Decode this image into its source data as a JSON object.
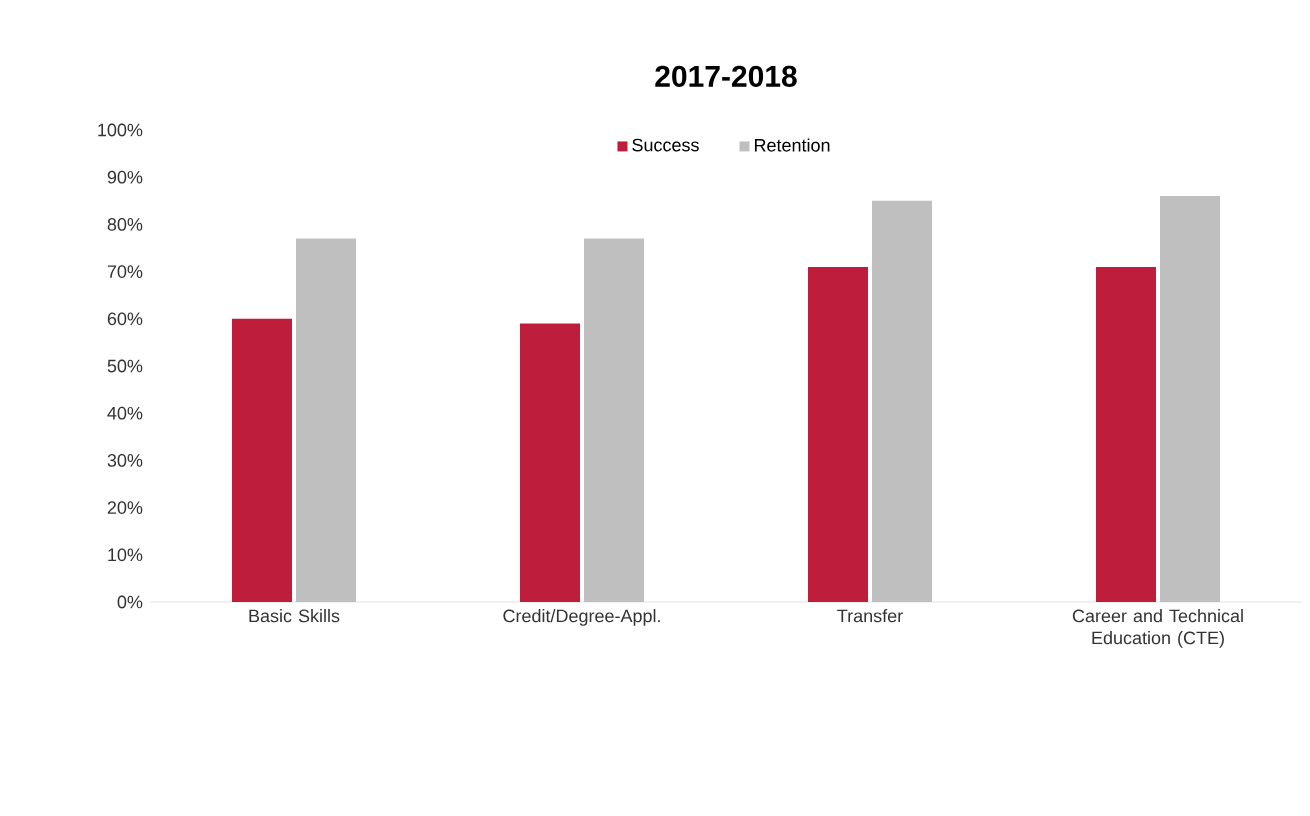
{
  "chart_data": {
    "type": "bar",
    "title": "2017-2018",
    "categories": [
      "Basic Skills",
      "Credit/Degree-Appl.",
      "Transfer",
      "Career and Technical Education (CTE)"
    ],
    "series": [
      {
        "name": "Success",
        "color": "#be1e3c",
        "values": [
          60,
          59,
          71,
          71
        ]
      },
      {
        "name": "Retention",
        "color": "#bfbfbf",
        "values": [
          77,
          77,
          85,
          86
        ]
      }
    ],
    "ylim": [
      0,
      100
    ],
    "yticks": [
      {
        "value": 0,
        "label": "0%"
      },
      {
        "value": 10,
        "label": "10%"
      },
      {
        "value": 20,
        "label": "20%"
      },
      {
        "value": 30,
        "label": "30%"
      },
      {
        "value": 40,
        "label": "40%"
      },
      {
        "value": 50,
        "label": "50%"
      },
      {
        "value": 60,
        "label": "60%"
      },
      {
        "value": 70,
        "label": "70%"
      },
      {
        "value": 80,
        "label": "80%"
      },
      {
        "value": 90,
        "label": "90%"
      },
      {
        "value": 100,
        "label": "100%"
      }
    ],
    "legend": "top"
  }
}
